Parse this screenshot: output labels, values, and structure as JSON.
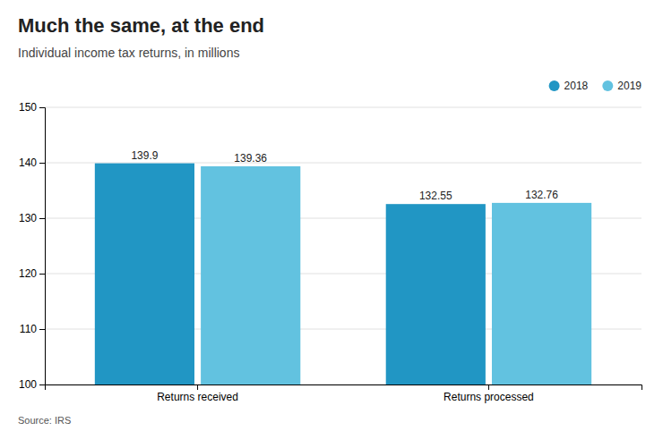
{
  "chart_data": {
    "type": "bar",
    "title": "Much the same, at the end",
    "subtitle": "Individual income tax returns, in millions",
    "source": "Source: IRS",
    "categories": [
      "Returns received",
      "Returns processed"
    ],
    "series": [
      {
        "name": "2018",
        "color": "#2196c4",
        "values": [
          139.9,
          132.55
        ]
      },
      {
        "name": "2019",
        "color": "#62c2e0",
        "values": [
          139.36,
          132.76
        ]
      }
    ],
    "ylim": [
      100,
      150
    ],
    "yticks": [
      100,
      110,
      120,
      130,
      140,
      150
    ],
    "grid": true,
    "legend": "upper right",
    "data_labels": true
  }
}
